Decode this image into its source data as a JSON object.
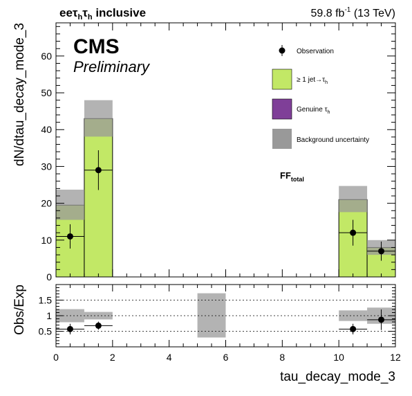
{
  "header": {
    "title_main": "ee",
    "title_tail": "inclusive",
    "lumi": "59.8 fb",
    "lumi_exp": "-1",
    "energy": "(13 TeV)"
  },
  "cms": {
    "label": "CMS",
    "sublabel": "Preliminary"
  },
  "annotation": {
    "text": "FF",
    "sub": "total"
  },
  "legend": {
    "observation": "Observation",
    "jet_prefix": "≥ 1 jet→τ",
    "jet_sub": "h",
    "genuine_prefix": "Genuine τ",
    "genuine_sub": "h",
    "uncertainty": "Background uncertainty"
  },
  "colors": {
    "jet_fakes": "#c2e866",
    "genuine_tau": "#7f3f98",
    "uncertainty": "#999999"
  },
  "chart_data": [
    {
      "type": "bar",
      "name": "main",
      "xlabel": "tau_decay_mode_3",
      "ylabel": "dN/dtau_decay_mode_3",
      "xlim": [
        0,
        12
      ],
      "ylim": [
        0,
        69
      ],
      "x_ticks": [
        0,
        2,
        4,
        6,
        8,
        10,
        12
      ],
      "y_ticks": [
        0,
        10,
        20,
        30,
        40,
        50,
        60
      ],
      "bins": [
        [
          0,
          1
        ],
        [
          1,
          2
        ],
        [
          10,
          11
        ],
        [
          11,
          12
        ]
      ],
      "stack_jet_fakes": [
        19.5,
        43,
        21,
        8
      ],
      "stack_genuine_tau": [
        0,
        0,
        0,
        0
      ],
      "uncertainty_band": [
        [
          15.5,
          23.7
        ],
        [
          38.1,
          48
        ],
        [
          17.6,
          24.7
        ],
        [
          6,
          10
        ]
      ],
      "observation": {
        "x": [
          0.5,
          1.5,
          10.5,
          11.5
        ],
        "y": [
          11,
          29,
          12,
          7
        ],
        "yerr": [
          3.3,
          5.4,
          3.5,
          2.6
        ],
        "xerr": [
          0.5,
          0.5,
          0.5,
          0.5
        ]
      }
    },
    {
      "type": "scatter",
      "name": "ratio",
      "xlabel": "tau_decay_mode_3",
      "ylabel": "Obs/Exp",
      "xlim": [
        0,
        12
      ],
      "ylim": [
        0,
        2
      ],
      "y_ticks": [
        "0.5",
        "1",
        "1.5"
      ],
      "reference_lines": [
        0.5,
        1,
        1.5
      ],
      "uncertainty_band": [
        {
          "x": [
            0,
            1
          ],
          "y": [
            0.79,
            1.21
          ]
        },
        {
          "x": [
            1,
            2
          ],
          "y": [
            0.88,
            1.12
          ]
        },
        {
          "x": [
            5,
            6
          ],
          "y": [
            0.3,
            1.72
          ]
        },
        {
          "x": [
            10,
            11
          ],
          "y": [
            0.83,
            1.17
          ]
        },
        {
          "x": [
            11,
            12
          ],
          "y": [
            0.74,
            1.26
          ]
        }
      ],
      "points": {
        "x": [
          0.5,
          1.5,
          10.5,
          11.5
        ],
        "y": [
          0.57,
          0.68,
          0.57,
          0.87
        ],
        "yerr": [
          0.17,
          0.13,
          0.17,
          0.33
        ],
        "xerr": [
          0.5,
          0.5,
          0.5,
          0.5
        ]
      }
    }
  ]
}
